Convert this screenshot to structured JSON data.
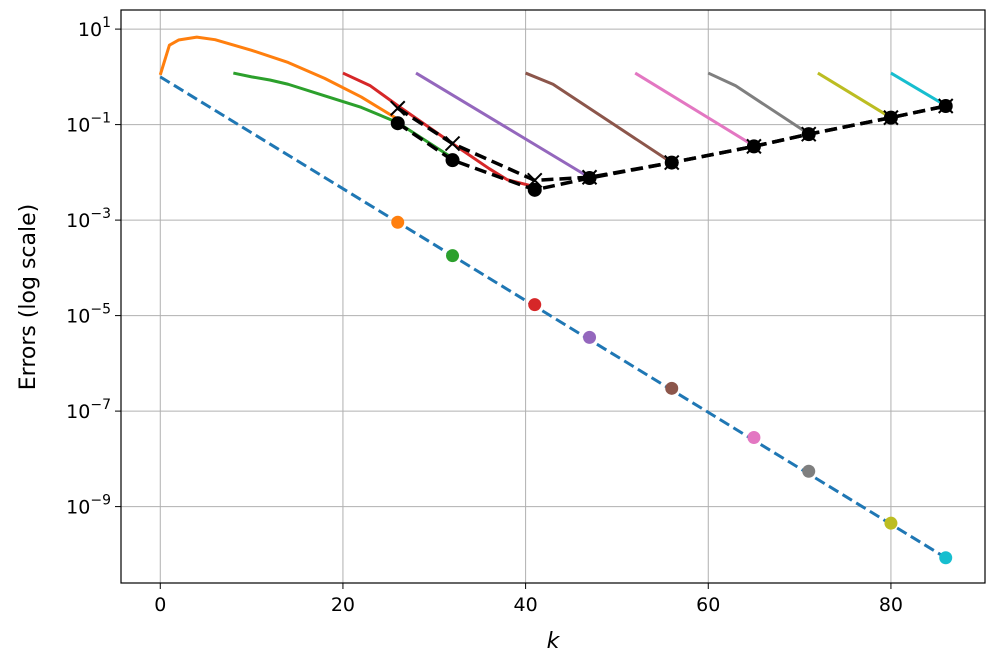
{
  "chart_data": {
    "type": "line",
    "xlabel": "k",
    "ylabel": "Errors (log scale)",
    "xlim": [
      -4.3,
      90.3
    ],
    "ylim_log10": [
      -10.6,
      1.4
    ],
    "yscale": "log",
    "grid": true,
    "x_ticks": [
      0,
      20,
      40,
      60,
      80
    ],
    "y_ticks": [
      {
        "exp": "1",
        "value": 10
      },
      {
        "exp": "-1",
        "value": 0.1
      },
      {
        "exp": "-3",
        "value": 0.001
      },
      {
        "exp": "-5",
        "value": 1e-05
      },
      {
        "exp": "-7",
        "value": 1e-07
      },
      {
        "exp": "-9",
        "value": 1e-09
      }
    ],
    "reference": {
      "color": "#1f77b4",
      "style": "dashed",
      "x": [
        0,
        86
      ],
      "y": [
        1.0,
        8.5e-11
      ]
    },
    "reference_markers": [
      {
        "x": 26,
        "y": 0.0009,
        "color": "#ff7f0e"
      },
      {
        "x": 32,
        "y": 0.00018,
        "color": "#2ca02c"
      },
      {
        "x": 41,
        "y": 1.7e-05,
        "color": "#d62728"
      },
      {
        "x": 47,
        "y": 3.5e-06,
        "color": "#9467bd"
      },
      {
        "x": 56,
        "y": 3e-07,
        "color": "#8c564b"
      },
      {
        "x": 65,
        "y": 2.8e-08,
        "color": "#e377c2"
      },
      {
        "x": 71,
        "y": 5.5e-09,
        "color": "#7f7f7f"
      },
      {
        "x": 80,
        "y": 4.5e-10,
        "color": "#bcbd22"
      },
      {
        "x": 86,
        "y": 8.5e-11,
        "color": "#17becf"
      }
    ],
    "series": [
      {
        "color": "#ff7f0e",
        "x": [
          0,
          1,
          2,
          4,
          6,
          10,
          14,
          18,
          22,
          26
        ],
        "y": [
          1.1,
          4.6,
          5.9,
          6.8,
          6.0,
          3.6,
          2.0,
          0.93,
          0.38,
          0.13
        ]
      },
      {
        "color": "#2ca02c",
        "x": [
          8,
          10,
          12,
          14,
          18,
          22,
          26,
          32
        ],
        "y": [
          1.2,
          1.0,
          0.86,
          0.7,
          0.4,
          0.23,
          0.11,
          0.02
        ]
      },
      {
        "color": "#d62728",
        "x": [
          20,
          23,
          26,
          32,
          36,
          38,
          41
        ],
        "y": [
          1.2,
          0.65,
          0.25,
          0.04,
          0.012,
          0.007,
          0.005
        ]
      },
      {
        "color": "#9467bd",
        "x": [
          28,
          47
        ],
        "y": [
          1.2,
          0.0078
        ]
      },
      {
        "color": "#8c564b",
        "x": [
          40,
          43,
          56
        ],
        "y": [
          1.2,
          0.7,
          0.016
        ]
      },
      {
        "color": "#e377c2",
        "x": [
          52,
          65
        ],
        "y": [
          1.2,
          0.036
        ]
      },
      {
        "color": "#7f7f7f",
        "x": [
          60,
          63,
          71
        ],
        "y": [
          1.2,
          0.65,
          0.064
        ]
      },
      {
        "color": "#bcbd22",
        "x": [
          72,
          80
        ],
        "y": [
          1.2,
          0.14
        ]
      },
      {
        "color": "#17becf",
        "x": [
          80,
          86
        ],
        "y": [
          1.2,
          0.25
        ]
      }
    ],
    "black_circles": {
      "color": "#000000",
      "style": "dashed",
      "marker": "circle",
      "x": [
        26,
        32,
        41,
        47,
        56,
        65,
        71,
        80,
        86
      ],
      "y": [
        0.107,
        0.018,
        0.0043,
        0.0076,
        0.016,
        0.035,
        0.063,
        0.14,
        0.245
      ]
    },
    "black_crosses": {
      "color": "#000000",
      "style": "dashed",
      "marker": "x",
      "x": [
        26,
        32,
        41,
        47,
        56,
        65,
        71,
        80,
        86
      ],
      "y": [
        0.22,
        0.04,
        0.0068,
        0.0079,
        0.016,
        0.035,
        0.063,
        0.14,
        0.245
      ]
    }
  }
}
